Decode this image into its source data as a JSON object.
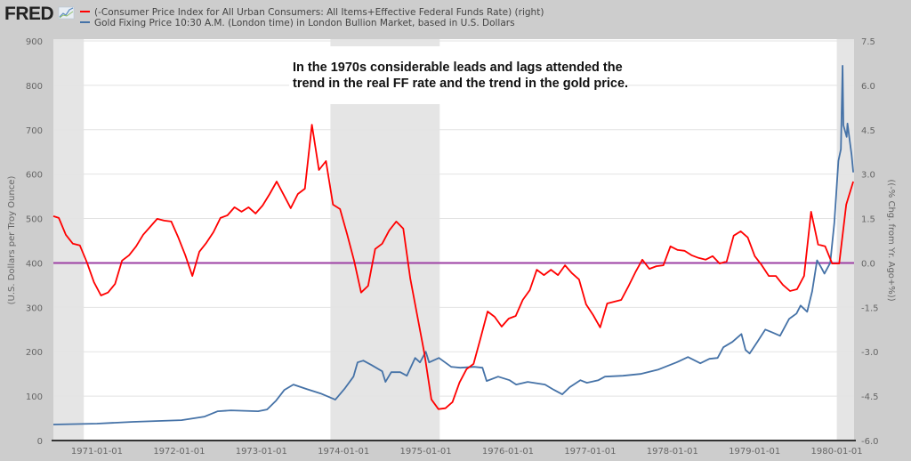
{
  "header": {
    "logo_text": "FRED",
    "legend": [
      {
        "label": "(-Consumer Price Index for All Urban Consumers: All Items+Effective Federal Funds Rate) (right)",
        "color": "#ff0000"
      },
      {
        "label": "Gold Fixing Price 10:30 A.M. (London time) in London Bullion Market, based in U.S. Dollars",
        "color": "#4572a7"
      }
    ]
  },
  "annotation": {
    "line1": "In the 1970s considerable leads and lags attended the",
    "line2": "trend in the real FF rate and the trend in the gold price."
  },
  "chart_data": {
    "type": "line",
    "xlabel": "",
    "ylabel": "(U.S. Dollars per Troy Ounce)",
    "ylabel_right": "((-% Chg. from Yr. Ago+%))",
    "xlim": [
      1970.47,
      1980.21
    ],
    "ylim": [
      0,
      900
    ],
    "ylim_right": [
      -6.0,
      7.5
    ],
    "grid": true,
    "legend_position": "top-left",
    "x_ticks": [
      {
        "x": 1971,
        "label": "1971-01-01"
      },
      {
        "x": 1972,
        "label": "1972-01-01"
      },
      {
        "x": 1973,
        "label": "1973-01-01"
      },
      {
        "x": 1974,
        "label": "1974-01-01"
      },
      {
        "x": 1975,
        "label": "1975-01-01"
      },
      {
        "x": 1976,
        "label": "1976-01-01"
      },
      {
        "x": 1977,
        "label": "1977-01-01"
      },
      {
        "x": 1978,
        "label": "1978-01-01"
      },
      {
        "x": 1979,
        "label": "1979-01-01"
      },
      {
        "x": 1980,
        "label": "1980-01-01"
      }
    ],
    "y_ticks": [
      "0",
      "100",
      "200",
      "300",
      "400",
      "500",
      "600",
      "700",
      "800",
      "900"
    ],
    "y_ticks_right": [
      "-6.0",
      "-4.5",
      "-3.0",
      "-1.5",
      "0.0",
      "1.5",
      "3.0",
      "4.5",
      "6.0",
      "7.5"
    ],
    "recessions": [
      [
        1970.47,
        1970.84
      ],
      [
        1973.84,
        1975.17
      ],
      [
        1980.0,
        1980.21
      ]
    ],
    "reference_line": {
      "axis": "right",
      "value": 0.0,
      "color": "#9c3fa3"
    },
    "series": [
      {
        "name": "(-Consumer Price Index for All Urban Consumers: All Items+Effective Federal Funds Rate) (right)",
        "axis": "right",
        "color": "#ff0000",
        "x_range": [
          1970.45,
          1980.2
        ],
        "values": [
          1.58,
          1.52,
          0.95,
          0.65,
          0.59,
          0.02,
          -0.65,
          -1.1,
          -1.0,
          -0.71,
          0.08,
          0.26,
          0.56,
          0.95,
          1.22,
          1.49,
          1.43,
          1.4,
          0.86,
          0.26,
          -0.44,
          0.38,
          0.68,
          1.04,
          1.52,
          1.61,
          1.88,
          1.73,
          1.88,
          1.67,
          1.94,
          2.33,
          2.75,
          2.3,
          1.85,
          2.33,
          2.51,
          4.67,
          3.14,
          3.44,
          1.97,
          1.82,
          0.98,
          0.08,
          -1.0,
          -0.77,
          0.47,
          0.65,
          1.1,
          1.4,
          1.16,
          -0.53,
          -1.79,
          -3.05,
          -4.61,
          -4.94,
          -4.91,
          -4.7,
          -4.04,
          -3.59,
          -3.41,
          -2.54,
          -1.64,
          -1.82,
          -2.15,
          -1.88,
          -1.79,
          -1.25,
          -0.92,
          -0.23,
          -0.41,
          -0.23,
          -0.41,
          -0.08,
          -0.35,
          -0.56,
          -1.4,
          -1.76,
          -2.18,
          -1.37,
          -1.31,
          -1.25,
          -0.8,
          -0.32,
          0.11,
          -0.2,
          -0.11,
          -0.08,
          0.56,
          0.44,
          0.41,
          0.26,
          0.17,
          0.11,
          0.23,
          -0.02,
          0.05,
          0.92,
          1.07,
          0.86,
          0.23,
          -0.08,
          -0.44,
          -0.44,
          -0.74,
          -0.95,
          -0.89,
          -0.44,
          1.73,
          0.62,
          0.56,
          -0.02,
          -0.02,
          1.97,
          2.75
        ]
      },
      {
        "name": "Gold Fixing Price 10:30 A.M. (London time) in London Bullion Market, based in U.S. Dollars",
        "axis": "left",
        "color": "#4572a7",
        "points": [
          [
            1970.47,
            36
          ],
          [
            1971.0,
            38
          ],
          [
            1971.44,
            42
          ],
          [
            1972.03,
            46
          ],
          [
            1972.31,
            54
          ],
          [
            1972.47,
            66
          ],
          [
            1972.63,
            68
          ],
          [
            1972.96,
            66
          ],
          [
            1973.07,
            70
          ],
          [
            1973.18,
            90
          ],
          [
            1973.28,
            114
          ],
          [
            1973.39,
            126
          ],
          [
            1973.55,
            116
          ],
          [
            1973.72,
            106
          ],
          [
            1973.9,
            92
          ],
          [
            1974.01,
            116
          ],
          [
            1974.12,
            144
          ],
          [
            1974.17,
            176
          ],
          [
            1974.24,
            180
          ],
          [
            1974.34,
            170
          ],
          [
            1974.47,
            156
          ],
          [
            1974.51,
            132
          ],
          [
            1974.58,
            154
          ],
          [
            1974.69,
            154
          ],
          [
            1974.77,
            146
          ],
          [
            1974.87,
            186
          ],
          [
            1974.93,
            176
          ],
          [
            1975.0,
            200
          ],
          [
            1975.04,
            176
          ],
          [
            1975.16,
            186
          ],
          [
            1975.31,
            166
          ],
          [
            1975.42,
            164
          ],
          [
            1975.59,
            166
          ],
          [
            1975.69,
            164
          ],
          [
            1975.74,
            134
          ],
          [
            1975.88,
            144
          ],
          [
            1976.02,
            136
          ],
          [
            1976.1,
            126
          ],
          [
            1976.24,
            132
          ],
          [
            1976.45,
            126
          ],
          [
            1976.56,
            114
          ],
          [
            1976.66,
            104
          ],
          [
            1976.75,
            120
          ],
          [
            1976.88,
            136
          ],
          [
            1976.96,
            130
          ],
          [
            1977.1,
            136
          ],
          [
            1977.18,
            144
          ],
          [
            1977.4,
            146
          ],
          [
            1977.61,
            150
          ],
          [
            1977.83,
            160
          ],
          [
            1978.05,
            176
          ],
          [
            1978.19,
            188
          ],
          [
            1978.34,
            174
          ],
          [
            1978.45,
            184
          ],
          [
            1978.55,
            186
          ],
          [
            1978.62,
            210
          ],
          [
            1978.73,
            222
          ],
          [
            1978.84,
            240
          ],
          [
            1978.89,
            204
          ],
          [
            1978.94,
            196
          ],
          [
            1979.04,
            224
          ],
          [
            1979.13,
            250
          ],
          [
            1979.21,
            244
          ],
          [
            1979.31,
            236
          ],
          [
            1979.42,
            274
          ],
          [
            1979.51,
            286
          ],
          [
            1979.56,
            304
          ],
          [
            1979.64,
            290
          ],
          [
            1979.7,
            336
          ],
          [
            1979.76,
            406
          ],
          [
            1979.81,
            390
          ],
          [
            1979.85,
            376
          ],
          [
            1979.92,
            400
          ],
          [
            1979.97,
            490
          ],
          [
            1980.02,
            630
          ],
          [
            1980.05,
            656
          ],
          [
            1980.07,
            844
          ],
          [
            1980.08,
            710
          ],
          [
            1980.12,
            684
          ],
          [
            1980.13,
            714
          ],
          [
            1980.18,
            644
          ],
          [
            1980.2,
            604
          ]
        ]
      }
    ]
  }
}
